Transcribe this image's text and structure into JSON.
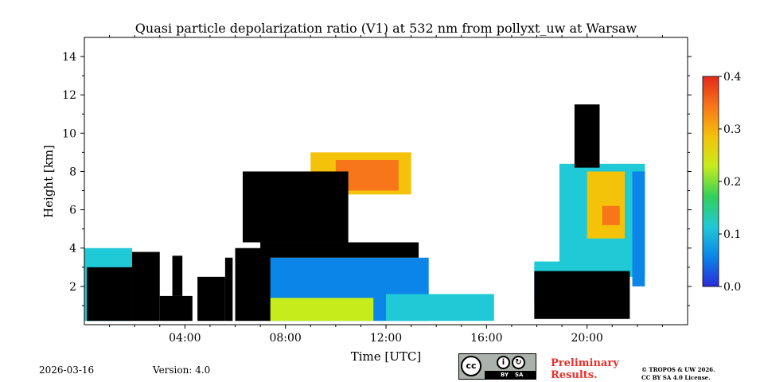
{
  "chart_data": {
    "type": "heatmap",
    "title": "Quasi particle depolarization ratio (V1) at 532 nm from pollyxt_uw at Warsaw",
    "xlabel": "Time [UTC]",
    "ylabel": "Height [km]",
    "x_range_hours": [
      0,
      24
    ],
    "y_range_km": [
      0,
      15
    ],
    "x_ticks": [
      {
        "value": 4,
        "label": "04:00"
      },
      {
        "value": 8,
        "label": "08:00"
      },
      {
        "value": 12,
        "label": "12:00"
      },
      {
        "value": 16,
        "label": "16:00"
      },
      {
        "value": 20,
        "label": "20:00"
      }
    ],
    "y_ticks": [
      {
        "value": 2,
        "label": "2"
      },
      {
        "value": 4,
        "label": "4"
      },
      {
        "value": 6,
        "label": "6"
      },
      {
        "value": 8,
        "label": "8"
      },
      {
        "value": 10,
        "label": "10"
      },
      {
        "value": 12,
        "label": "12"
      },
      {
        "value": 14,
        "label": "14"
      }
    ],
    "colorbar": {
      "min": 0.0,
      "max": 0.4,
      "ticks": [
        {
          "value": 0.0,
          "label": "0.0"
        },
        {
          "value": 0.1,
          "label": "0.1"
        },
        {
          "value": 0.2,
          "label": "0.2"
        },
        {
          "value": 0.3,
          "label": "0.3"
        },
        {
          "value": 0.4,
          "label": "0.4"
        }
      ],
      "colors": [
        "#2b2bd8",
        "#0b86e8",
        "#1fc9d6",
        "#33d05a",
        "#c6ec1c",
        "#f5c20a",
        "#f7761a",
        "#e22a1a"
      ]
    },
    "regions": [
      {
        "kind": "value",
        "t0": 0.0,
        "t1": 1.9,
        "h0": 0.2,
        "h1": 4.0,
        "value": 0.12
      },
      {
        "kind": "value",
        "t0": 7.3,
        "t1": 13.7,
        "h0": 0.2,
        "h1": 3.5,
        "value": 0.08
      },
      {
        "kind": "value",
        "t0": 7.3,
        "t1": 11.5,
        "h0": 0.2,
        "h1": 1.4,
        "value": 0.2
      },
      {
        "kind": "value",
        "t0": 12.0,
        "t1": 16.3,
        "h0": 0.2,
        "h1": 1.6,
        "value": 0.1
      },
      {
        "kind": "value",
        "t0": 9.0,
        "t1": 13.0,
        "h0": 6.8,
        "h1": 9.0,
        "value": 0.3
      },
      {
        "kind": "value",
        "t0": 10.0,
        "t1": 12.5,
        "h0": 7.0,
        "h1": 8.6,
        "value": 0.36
      },
      {
        "kind": "value",
        "t0": 17.9,
        "t1": 19.3,
        "h0": 1.2,
        "h1": 3.3,
        "value": 0.1
      },
      {
        "kind": "value",
        "t0": 18.9,
        "t1": 22.3,
        "h0": 2.5,
        "h1": 8.4,
        "value": 0.12
      },
      {
        "kind": "value",
        "t0": 20.0,
        "t1": 21.5,
        "h0": 4.5,
        "h1": 8.0,
        "value": 0.3
      },
      {
        "kind": "value",
        "t0": 20.6,
        "t1": 21.3,
        "h0": 5.2,
        "h1": 6.2,
        "value": 0.34
      },
      {
        "kind": "value",
        "t0": 21.8,
        "t1": 22.3,
        "h0": 2.0,
        "h1": 8.0,
        "value": 0.08
      },
      {
        "kind": "black",
        "t0": 0.1,
        "t1": 1.9,
        "h0": 0.2,
        "h1": 3.0
      },
      {
        "kind": "black",
        "t0": 1.9,
        "t1": 3.0,
        "h0": 0.2,
        "h1": 3.8
      },
      {
        "kind": "black",
        "t0": 3.0,
        "t1": 4.3,
        "h0": 0.2,
        "h1": 1.5
      },
      {
        "kind": "black",
        "t0": 3.5,
        "t1": 3.9,
        "h0": 1.5,
        "h1": 3.6
      },
      {
        "kind": "black",
        "t0": 4.5,
        "t1": 5.6,
        "h0": 0.2,
        "h1": 2.5
      },
      {
        "kind": "black",
        "t0": 5.6,
        "t1": 5.9,
        "h0": 0.2,
        "h1": 3.5
      },
      {
        "kind": "black",
        "t0": 6.0,
        "t1": 7.4,
        "h0": 0.2,
        "h1": 4.0
      },
      {
        "kind": "black",
        "t0": 7.0,
        "t1": 13.3,
        "h0": 3.5,
        "h1": 4.3
      },
      {
        "kind": "black",
        "t0": 6.3,
        "t1": 10.5,
        "h0": 4.3,
        "h1": 8.0
      },
      {
        "kind": "black",
        "t0": 17.9,
        "t1": 21.7,
        "h0": 0.3,
        "h1": 2.8
      },
      {
        "kind": "black",
        "t0": 19.5,
        "t1": 20.5,
        "h0": 8.2,
        "h1": 11.5
      }
    ]
  },
  "footer": {
    "date": "2026-03-16",
    "version": "Version: 4.0",
    "preliminary_line1": "Preliminary",
    "preliminary_line2": "Results.",
    "copyright_line1": "© TROPOS & UW 2026.",
    "copyright_line2": "CC BY SA 4.0 License.",
    "cc_logo": "cc",
    "cc_by": "BY",
    "cc_sa": "SA"
  }
}
